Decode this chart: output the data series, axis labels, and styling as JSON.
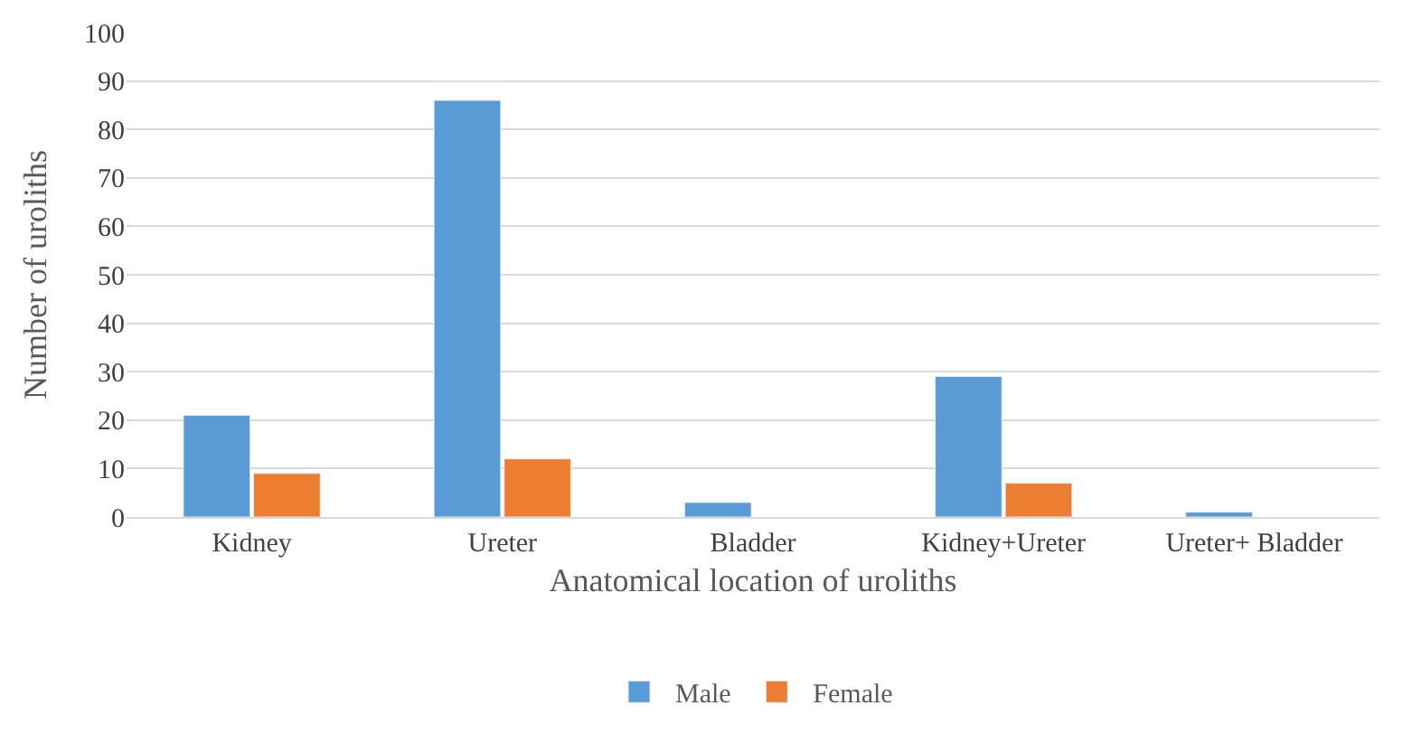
{
  "chart_data": {
    "type": "bar",
    "xlabel": "Anatomical location of uroliths",
    "ylabel": "Number of uroliths",
    "categories": [
      "Kidney",
      "Ureter",
      "Bladder",
      "Kidney+Ureter",
      "Ureter+ Bladder"
    ],
    "series": [
      {
        "name": "Male",
        "color": "#5b9bd5",
        "values": [
          21,
          86,
          3,
          29,
          1
        ]
      },
      {
        "name": "Female",
        "color": "#ed7d31",
        "values": [
          9,
          12,
          null,
          7,
          null
        ]
      }
    ],
    "ylim": [
      0,
      100
    ],
    "yticks": [
      0,
      10,
      20,
      30,
      40,
      50,
      60,
      70,
      80,
      90,
      100
    ],
    "grid": "y",
    "legend": "bottom"
  }
}
